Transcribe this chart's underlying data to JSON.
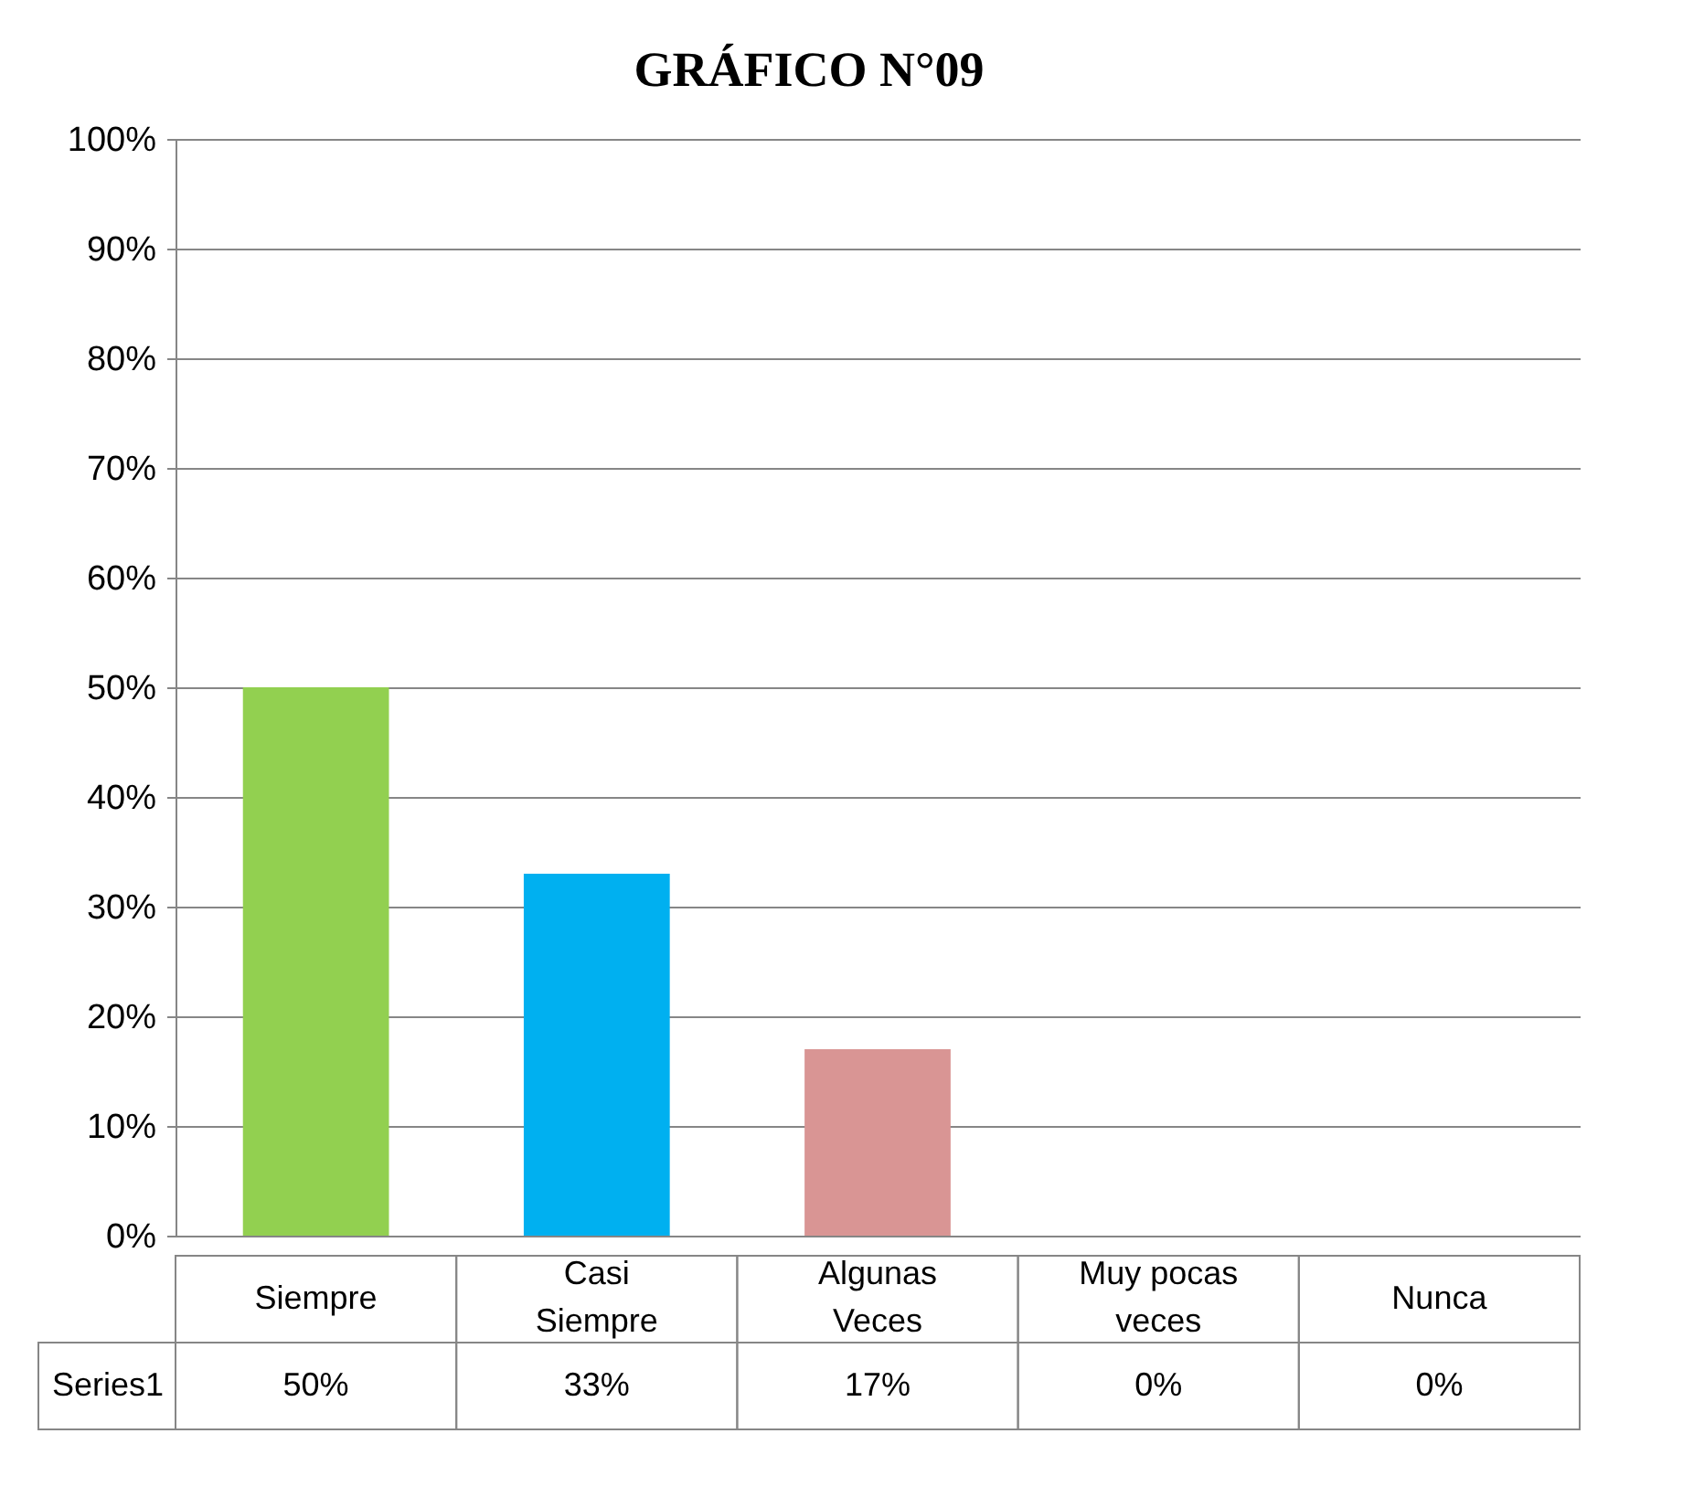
{
  "chart_data": {
    "type": "bar",
    "title": "GRÁFICO N°09",
    "categories": [
      "Siempre",
      "Casi Siempre",
      "Algunas Veces",
      "Muy pocas veces",
      "Nunca"
    ],
    "series": [
      {
        "name": "Series1",
        "colors": [
          "#92d050",
          "#00b0f0",
          "#d99594",
          "#8064a2",
          "#4bacc6"
        ],
        "values": [
          50,
          33,
          17,
          0,
          0
        ],
        "value_labels": [
          "50%",
          "33%",
          "17%",
          "0%",
          "0%"
        ]
      }
    ],
    "ylim": [
      0,
      100
    ],
    "yticks": [
      {
        "value": 0,
        "label": "0%"
      },
      {
        "value": 10,
        "label": "10%"
      },
      {
        "value": 20,
        "label": "20%"
      },
      {
        "value": 30,
        "label": "30%"
      },
      {
        "value": 40,
        "label": "40%"
      },
      {
        "value": 50,
        "label": "50%"
      },
      {
        "value": 60,
        "label": "60%"
      },
      {
        "value": 70,
        "label": "70%"
      },
      {
        "value": 80,
        "label": "80%"
      },
      {
        "value": 90,
        "label": "90%"
      },
      {
        "value": 100,
        "label": "100%"
      }
    ],
    "grid": "y"
  }
}
